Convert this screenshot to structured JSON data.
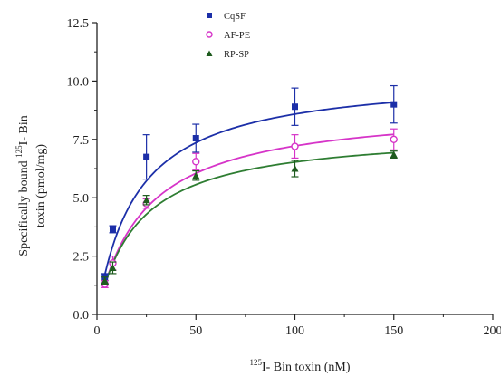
{
  "chart_data": {
    "type": "scatter",
    "title": "",
    "xlabel": {
      "sup": "125",
      "text": "I- Bin toxin (nM)"
    },
    "ylabel": {
      "line1_prefix": "Specifically bound ",
      "line1_sup": "125",
      "line1_suffix": "I- Bin",
      "line2": "toxin (pmol/mg)"
    },
    "xlim": [
      0,
      200
    ],
    "ylim": [
      0,
      12.5
    ],
    "xticks": [
      "0",
      "50",
      "100",
      "150",
      "200"
    ],
    "yticks": [
      "0.0",
      "2.5",
      "5.0",
      "7.5",
      "10.0",
      "12.5"
    ],
    "grid": false,
    "legend_position": "top-center",
    "series": [
      {
        "name": "CqSF",
        "marker": "square-filled",
        "color": "#1c2fa8",
        "curve_color": "#1c2fa8",
        "x": [
          4,
          8,
          25,
          50,
          100,
          150
        ],
        "y": [
          1.6,
          3.65,
          6.75,
          7.55,
          8.9,
          9.0
        ],
        "err": [
          0.15,
          0.15,
          0.95,
          0.6,
          0.8,
          0.8
        ],
        "fit": {
          "model": "one-site binding",
          "bmax": 10.3,
          "kd": 20
        }
      },
      {
        "name": "AF-PE",
        "marker": "circle-open",
        "color": "#d634c8",
        "curve_color": "#d634c8",
        "x": [
          4,
          8,
          25,
          50,
          100,
          150
        ],
        "y": [
          1.3,
          2.2,
          4.75,
          6.55,
          7.2,
          7.5
        ],
        "err": [
          0.15,
          0.3,
          0.2,
          0.35,
          0.5,
          0.45
        ],
        "fit": {
          "model": "one-site binding",
          "bmax": 8.95,
          "kd": 24
        }
      },
      {
        "name": "RP-SP",
        "marker": "triangle-filled",
        "color": "#1e5b1e",
        "curve_color": "#2e7d32",
        "x": [
          4,
          8,
          25,
          50,
          100,
          150
        ],
        "y": [
          1.45,
          2.0,
          4.9,
          5.95,
          6.25,
          6.85
        ],
        "err": [
          0.15,
          0.25,
          0.2,
          0.2,
          0.35,
          0.15
        ],
        "fit": {
          "model": "one-site binding",
          "bmax": 7.9,
          "kd": 21
        }
      }
    ]
  }
}
